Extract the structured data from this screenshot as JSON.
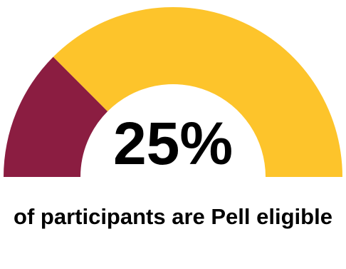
{
  "chart_data": {
    "type": "gauge",
    "value_percent": 25,
    "value_label": "25%",
    "caption": "of participants are Pell eligible",
    "colors": {
      "filled": "#8B1D41",
      "remaining": "#FDC42B"
    },
    "range": [
      0,
      100
    ]
  }
}
